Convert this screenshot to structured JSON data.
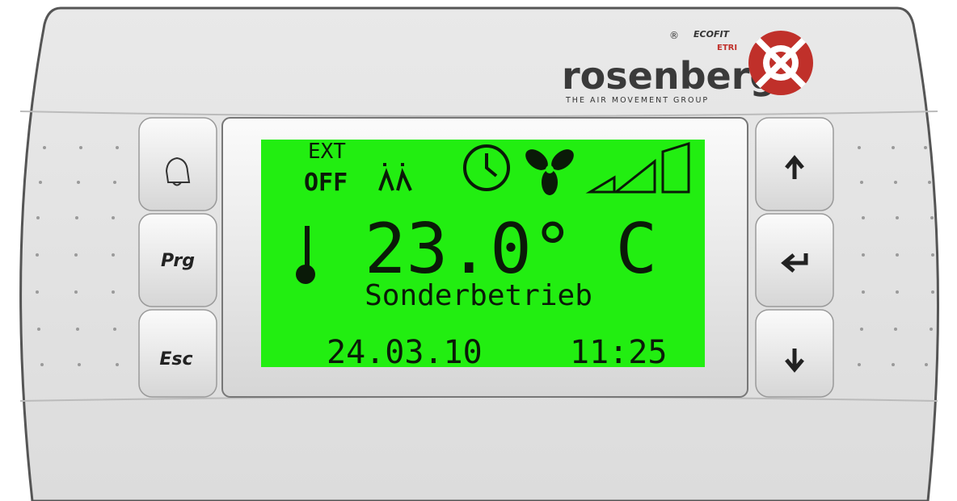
{
  "logo": {
    "brand": "rosenberg",
    "tagline": "THE AIR MOVEMENT GROUP",
    "registered": "®",
    "ecofit": "ECOFIT",
    "etri": "ETRI"
  },
  "display": {
    "ext": "EXT",
    "status": "OFF",
    "temperature": "23.0° C",
    "mode": "Sonderbetrieb",
    "date": "24.03.10",
    "time": "11:25"
  },
  "buttons": {
    "prg": "Prg",
    "esc": "Esc"
  }
}
